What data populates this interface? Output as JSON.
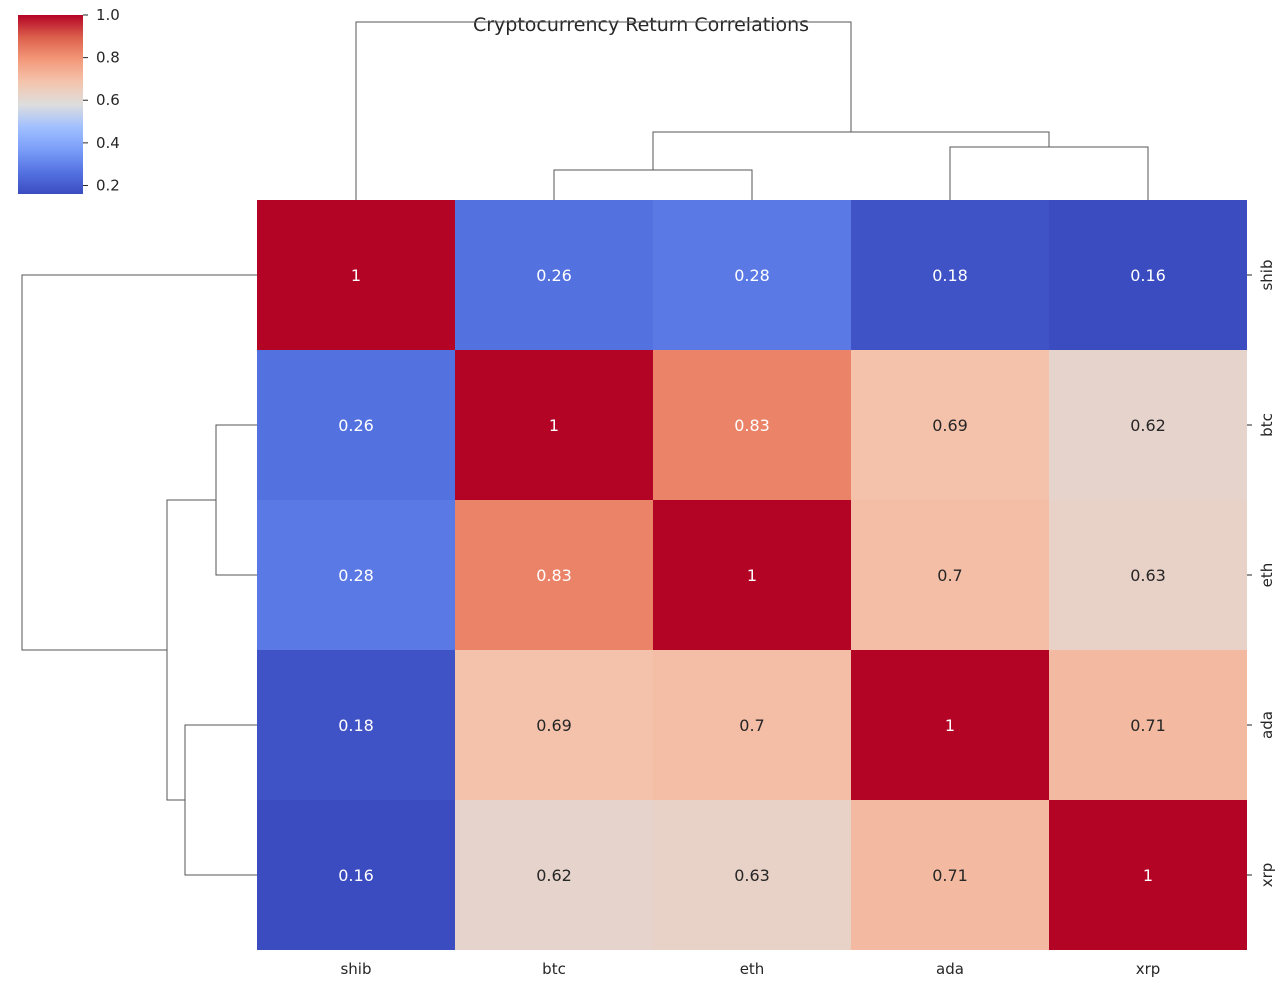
{
  "chart_data": {
    "type": "heatmap",
    "title": "Cryptocurrency Return Correlations",
    "x_labels": [
      "shib",
      "btc",
      "eth",
      "ada",
      "xrp"
    ],
    "y_labels": [
      "shib",
      "btc",
      "eth",
      "ada",
      "xrp"
    ],
    "values": [
      [
        1,
        0.26,
        0.28,
        0.18,
        0.16
      ],
      [
        0.26,
        1,
        0.83,
        0.69,
        0.62
      ],
      [
        0.28,
        0.83,
        1,
        0.7,
        0.63
      ],
      [
        0.18,
        0.69,
        0.7,
        1,
        0.71
      ],
      [
        0.16,
        0.62,
        0.63,
        0.71,
        1
      ]
    ],
    "annotations": [
      [
        "1",
        "0.26",
        "0.28",
        "0.18",
        "0.16"
      ],
      [
        "0.26",
        "1",
        "0.83",
        "0.69",
        "0.62"
      ],
      [
        "0.28",
        "0.83",
        "1",
        "0.7",
        "0.63"
      ],
      [
        "0.18",
        "0.69",
        "0.7",
        "1",
        "0.71"
      ],
      [
        "0.16",
        "0.62",
        "0.63",
        "0.71",
        "1"
      ]
    ],
    "colormap": "coolwarm",
    "colorbar": {
      "min": 0.16,
      "max": 1.0,
      "ticks": [
        0.2,
        0.4,
        0.6,
        0.8,
        1.0
      ],
      "tick_labels": [
        "0.2",
        "0.4",
        "0.6",
        "0.8",
        "1.0"
      ],
      "placement": "top-left"
    },
    "dendrograms": {
      "column_clusters": [
        [
          "btc",
          "eth"
        ],
        [
          "ada",
          "xrp"
        ],
        [
          "btc",
          "eth",
          "ada",
          "xrp"
        ],
        [
          "shib",
          "btc",
          "eth",
          "ada",
          "xrp"
        ]
      ],
      "row_clusters": [
        [
          "btc",
          "eth"
        ],
        [
          "ada",
          "xrp"
        ],
        [
          "btc",
          "eth",
          "ada",
          "xrp"
        ],
        [
          "shib",
          "btc",
          "eth",
          "ada",
          "xrp"
        ]
      ]
    },
    "grid": false
  }
}
